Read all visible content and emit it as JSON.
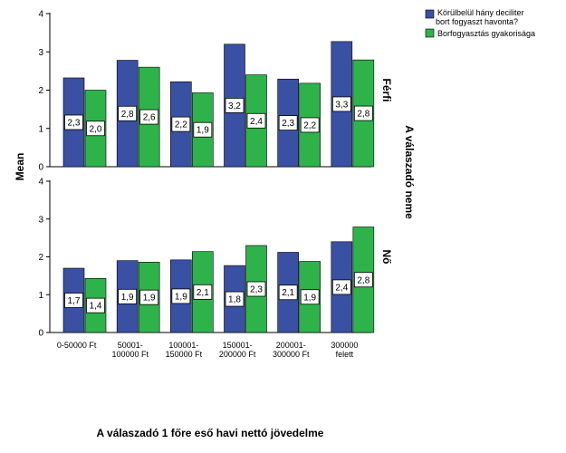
{
  "chart_data": {
    "type": "bar",
    "categories": [
      "0-50000 Ft",
      "50001-100000 Ft",
      "100001-150000 Ft",
      "150001-200000 Ft",
      "200001-300000 Ft",
      "300000 felett"
    ],
    "category_lines": [
      [
        "0-50000 Ft"
      ],
      [
        "50001-",
        "100000 Ft"
      ],
      [
        "100001-",
        "150000 Ft"
      ],
      [
        "150001-",
        "200000 Ft"
      ],
      [
        "200001-",
        "300000 Ft"
      ],
      [
        "300000",
        "felett"
      ]
    ],
    "ylabel": "Mean",
    "xlabel": "A válaszadó 1 főre eső havi nettó jövedelme",
    "facet_title": "A válaszadó neme",
    "ylim": [
      0,
      4
    ],
    "yticks": [
      0,
      1,
      2,
      3,
      4
    ],
    "legend_position": "top-right",
    "series": [
      {
        "name": "Körülbelül hány deciliter bort fogyaszt havonta?",
        "name_lines": [
          "Körülbelül hány deciliter",
          "bort fogyaszt havonta?"
        ],
        "color": "#3a51a3"
      },
      {
        "name": "Borfogyasztás gyakorisága",
        "name_lines": [
          "Borfogyasztás gyakorisága"
        ],
        "color": "#2eb24a"
      }
    ],
    "panels": [
      {
        "label": "Férfi",
        "series_values": [
          [
            2.32,
            2.78,
            2.22,
            3.2,
            2.29,
            3.27
          ],
          [
            2.0,
            2.6,
            1.93,
            2.4,
            2.18,
            2.79
          ]
        ],
        "data_labels": [
          [
            "2,3",
            "2,8",
            "2,2",
            "3,2",
            "2,3",
            "3,3"
          ],
          [
            "2,0",
            "2,6",
            "1,9",
            "2,4",
            "2,2",
            "2,8"
          ]
        ]
      },
      {
        "label": "Nő",
        "series_values": [
          [
            1.7,
            1.9,
            1.92,
            1.77,
            2.12,
            2.4
          ],
          [
            1.43,
            1.86,
            2.14,
            2.3,
            1.88,
            2.79
          ]
        ],
        "data_labels": [
          [
            "1,7",
            "1,9",
            "1,9",
            "1,8",
            "2,1",
            "2,4"
          ],
          [
            "1,4",
            "1,9",
            "2,1",
            "2,3",
            "1,9",
            "2,8"
          ]
        ]
      }
    ]
  }
}
